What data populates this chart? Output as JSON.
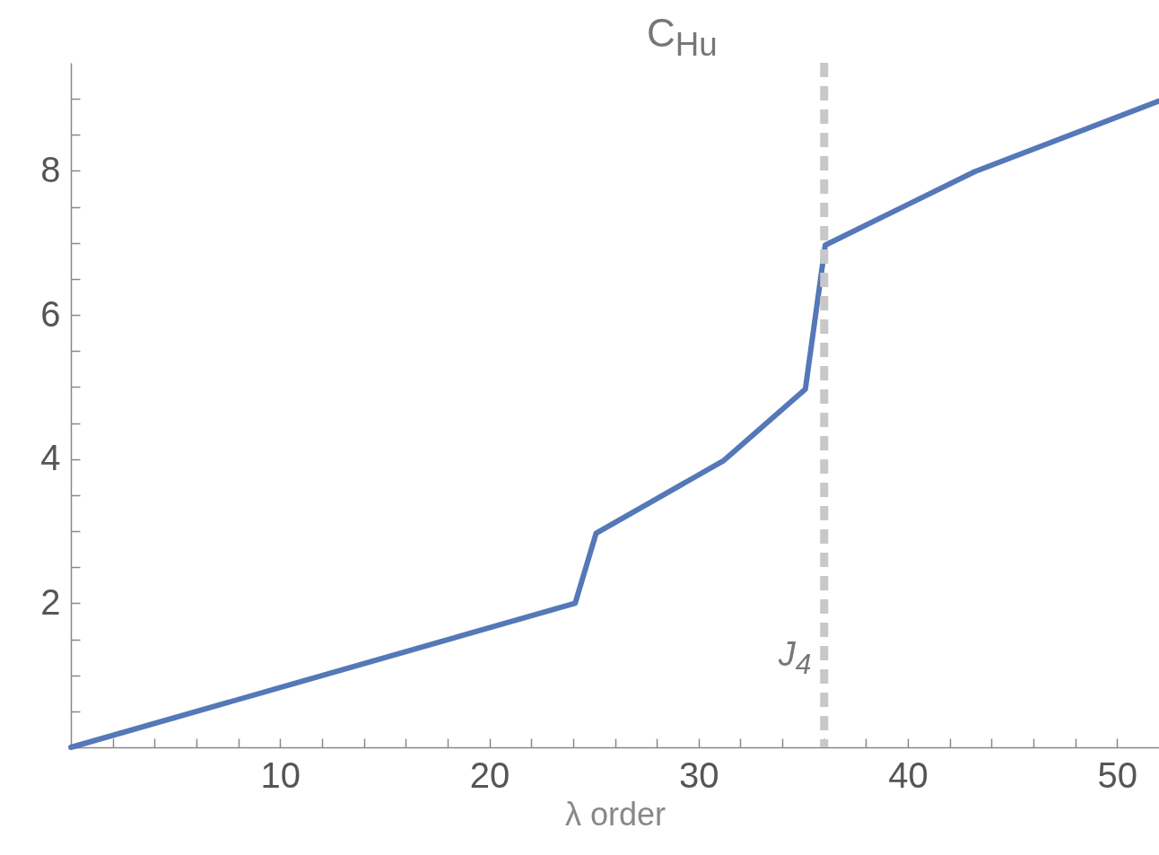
{
  "chart_data": {
    "type": "line",
    "title": "C$_{Hu}$",
    "xlabel": "λ order",
    "x": [
      0,
      24.1,
      25.1,
      31.2,
      35.1,
      36.05,
      43.2,
      52
    ],
    "series": [
      {
        "color": "#5478b8",
        "values": [
          0,
          2,
          2.97,
          3.98,
          4.97,
          6.97,
          7.99,
          8.97
        ]
      }
    ],
    "xlim": [
      0,
      52
    ],
    "ylim": [
      0,
      9.5
    ],
    "xticks": [
      {
        "value": 2,
        "label": null
      },
      {
        "value": 4,
        "label": null
      },
      {
        "value": 6,
        "label": null
      },
      {
        "value": 8,
        "label": null
      },
      10,
      {
        "value": 12,
        "label": null
      },
      {
        "value": 14,
        "label": null
      },
      {
        "value": 16,
        "label": null
      },
      {
        "value": 18,
        "label": null
      },
      20,
      {
        "value": 22,
        "label": null
      },
      {
        "value": 24,
        "label": null
      },
      {
        "value": 26,
        "label": null
      },
      {
        "value": 28,
        "label": null
      },
      30,
      {
        "value": 32,
        "label": null
      },
      {
        "value": 34,
        "label": null
      },
      {
        "value": 36,
        "label": null
      },
      {
        "value": 38,
        "label": null
      },
      40,
      {
        "value": 42,
        "label": null
      },
      {
        "value": 44,
        "label": null
      },
      {
        "value": 46,
        "label": null
      },
      {
        "value": 48,
        "label": null
      },
      50
    ],
    "yticks": [
      {
        "value": 0,
        "label": null
      },
      {
        "value": 0.5,
        "label": null
      },
      {
        "value": 1,
        "label": null
      },
      {
        "value": 1.5,
        "label": null
      },
      2,
      {
        "value": 2.5,
        "label": null
      },
      {
        "value": 3,
        "label": null
      },
      {
        "value": 3.5,
        "label": null
      },
      4,
      {
        "value": 4.5,
        "label": null
      },
      {
        "value": 5,
        "label": null
      },
      {
        "value": 5.5,
        "label": null
      },
      6,
      {
        "value": 6.5,
        "label": null
      },
      {
        "value": 7,
        "label": null
      },
      {
        "value": 7.5,
        "label": null
      },
      8,
      {
        "value": 8.5,
        "label": null
      },
      {
        "value": 9,
        "label": null
      }
    ],
    "grid": false,
    "ref_lines": [
      {
        "axis": "x",
        "value": 36,
        "label": "J$_{4}$",
        "color": "#c8c8c8",
        "line_style": "dashed"
      }
    ]
  }
}
